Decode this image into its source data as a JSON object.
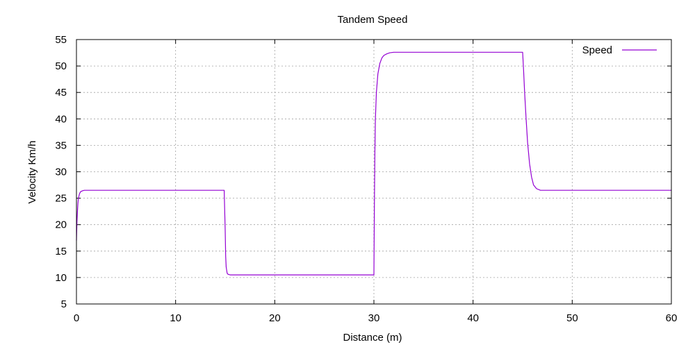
{
  "chart_data": {
    "type": "line",
    "title": "Tandem Speed",
    "xlabel": "Distance (m)",
    "ylabel": "Velocity Km/h",
    "xlim": [
      0,
      60
    ],
    "ylim": [
      5,
      55
    ],
    "xticks": [
      0,
      10,
      20,
      30,
      40,
      50,
      60
    ],
    "yticks": [
      5,
      10,
      15,
      20,
      25,
      30,
      35,
      40,
      45,
      50,
      55
    ],
    "grid": true,
    "legend_position": "top-right",
    "series": [
      {
        "name": "Speed",
        "color": "#9400d3",
        "x": [
          0,
          0.05,
          0.1,
          0.15,
          0.2,
          0.3,
          0.4,
          0.6,
          0.8,
          1.0,
          14.9,
          15.0,
          15.05,
          15.1,
          15.2,
          15.3,
          15.5,
          30.0,
          30.05,
          30.1,
          30.15,
          30.25,
          30.4,
          30.6,
          30.8,
          31.0,
          31.3,
          31.6,
          32.0,
          32.5,
          45.0,
          45.1,
          45.2,
          45.35,
          45.5,
          45.7,
          45.9,
          46.1,
          46.4,
          46.8,
          60.0
        ],
        "y": [
          17,
          20.5,
          22.5,
          24,
          25,
          25.8,
          26.2,
          26.4,
          26.5,
          26.5,
          26.5,
          19,
          14,
          12,
          10.8,
          10.6,
          10.5,
          10.5,
          24,
          34,
          40,
          45,
          48.5,
          50.5,
          51.5,
          52,
          52.3,
          52.5,
          52.6,
          52.6,
          52.6,
          49,
          45,
          40,
          35.5,
          31.5,
          29,
          27.5,
          26.8,
          26.5,
          26.5
        ]
      }
    ]
  }
}
